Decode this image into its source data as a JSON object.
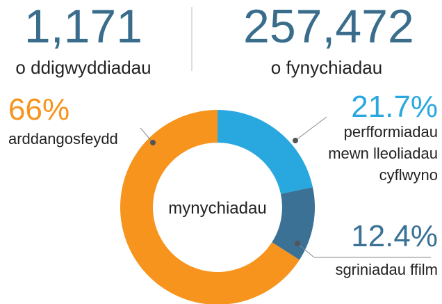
{
  "stats": [
    {
      "value": "1,171",
      "label": "o ddigwyddiadau"
    },
    {
      "value": "257,472",
      "label": "o fynychiadau"
    }
  ],
  "chart_data": {
    "type": "donut",
    "center_label": "mynychiadau",
    "categories": [
      "arddangosfeydd",
      "perfformiadau\nmewn lleoliadau\ncyflwyno",
      "sgriniadau ffilm"
    ],
    "values": [
      66,
      21.7,
      12.4
    ],
    "value_labels": [
      "66%",
      "21.7%",
      "12.4%"
    ],
    "colors": [
      "#f7941d",
      "#29a8e0",
      "#3a7195"
    ]
  }
}
